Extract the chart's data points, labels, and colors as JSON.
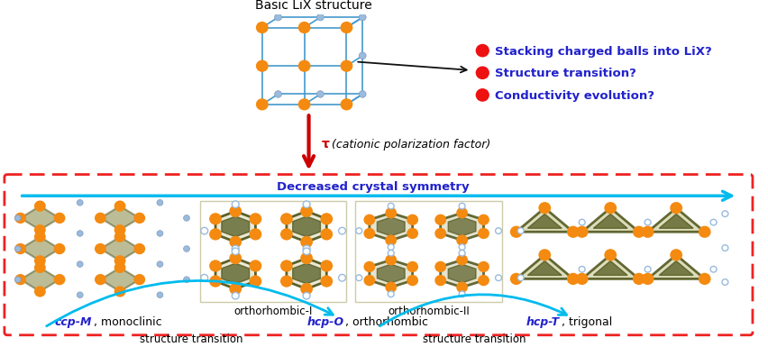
{
  "title_top": "Basic LiX structure",
  "tau_label": " (cationic polarization factor)",
  "tau_bold": "τ",
  "decreased_symmetry": "Decreased crystal symmetry",
  "bullet_items": [
    "Stacking charged balls into LiX?",
    "Structure transition?",
    "Conductivity evolution?"
  ],
  "label_ortho1": "orthorhombic-I",
  "label_ortho2": "orthorhombic-II",
  "label_ccp": "ccp-M",
  "label_mono": ", monoclinic",
  "label_hcpO": "hcp-O",
  "label_ortho": ", orthorhombic",
  "label_hcpT": "hcp-T",
  "label_trig": ", trigonal",
  "transition_label": "structure transition",
  "red_bullet_color": "#ee1111",
  "blue_text_color": "#2222cc",
  "cyan_arrow_color": "#00bbee",
  "red_dash_color": "#ee2222",
  "tau_arrow_color": "#cc0000",
  "black_arrow_color": "#111111",
  "bg_color": "#ffffff",
  "orange_color": "#f58a10",
  "olive_color": "#7a7a30",
  "olive_dark": "#4a5015",
  "blue_small_color": "#99bbdd",
  "fig_width": 8.52,
  "fig_height": 3.85,
  "dpi": 100
}
